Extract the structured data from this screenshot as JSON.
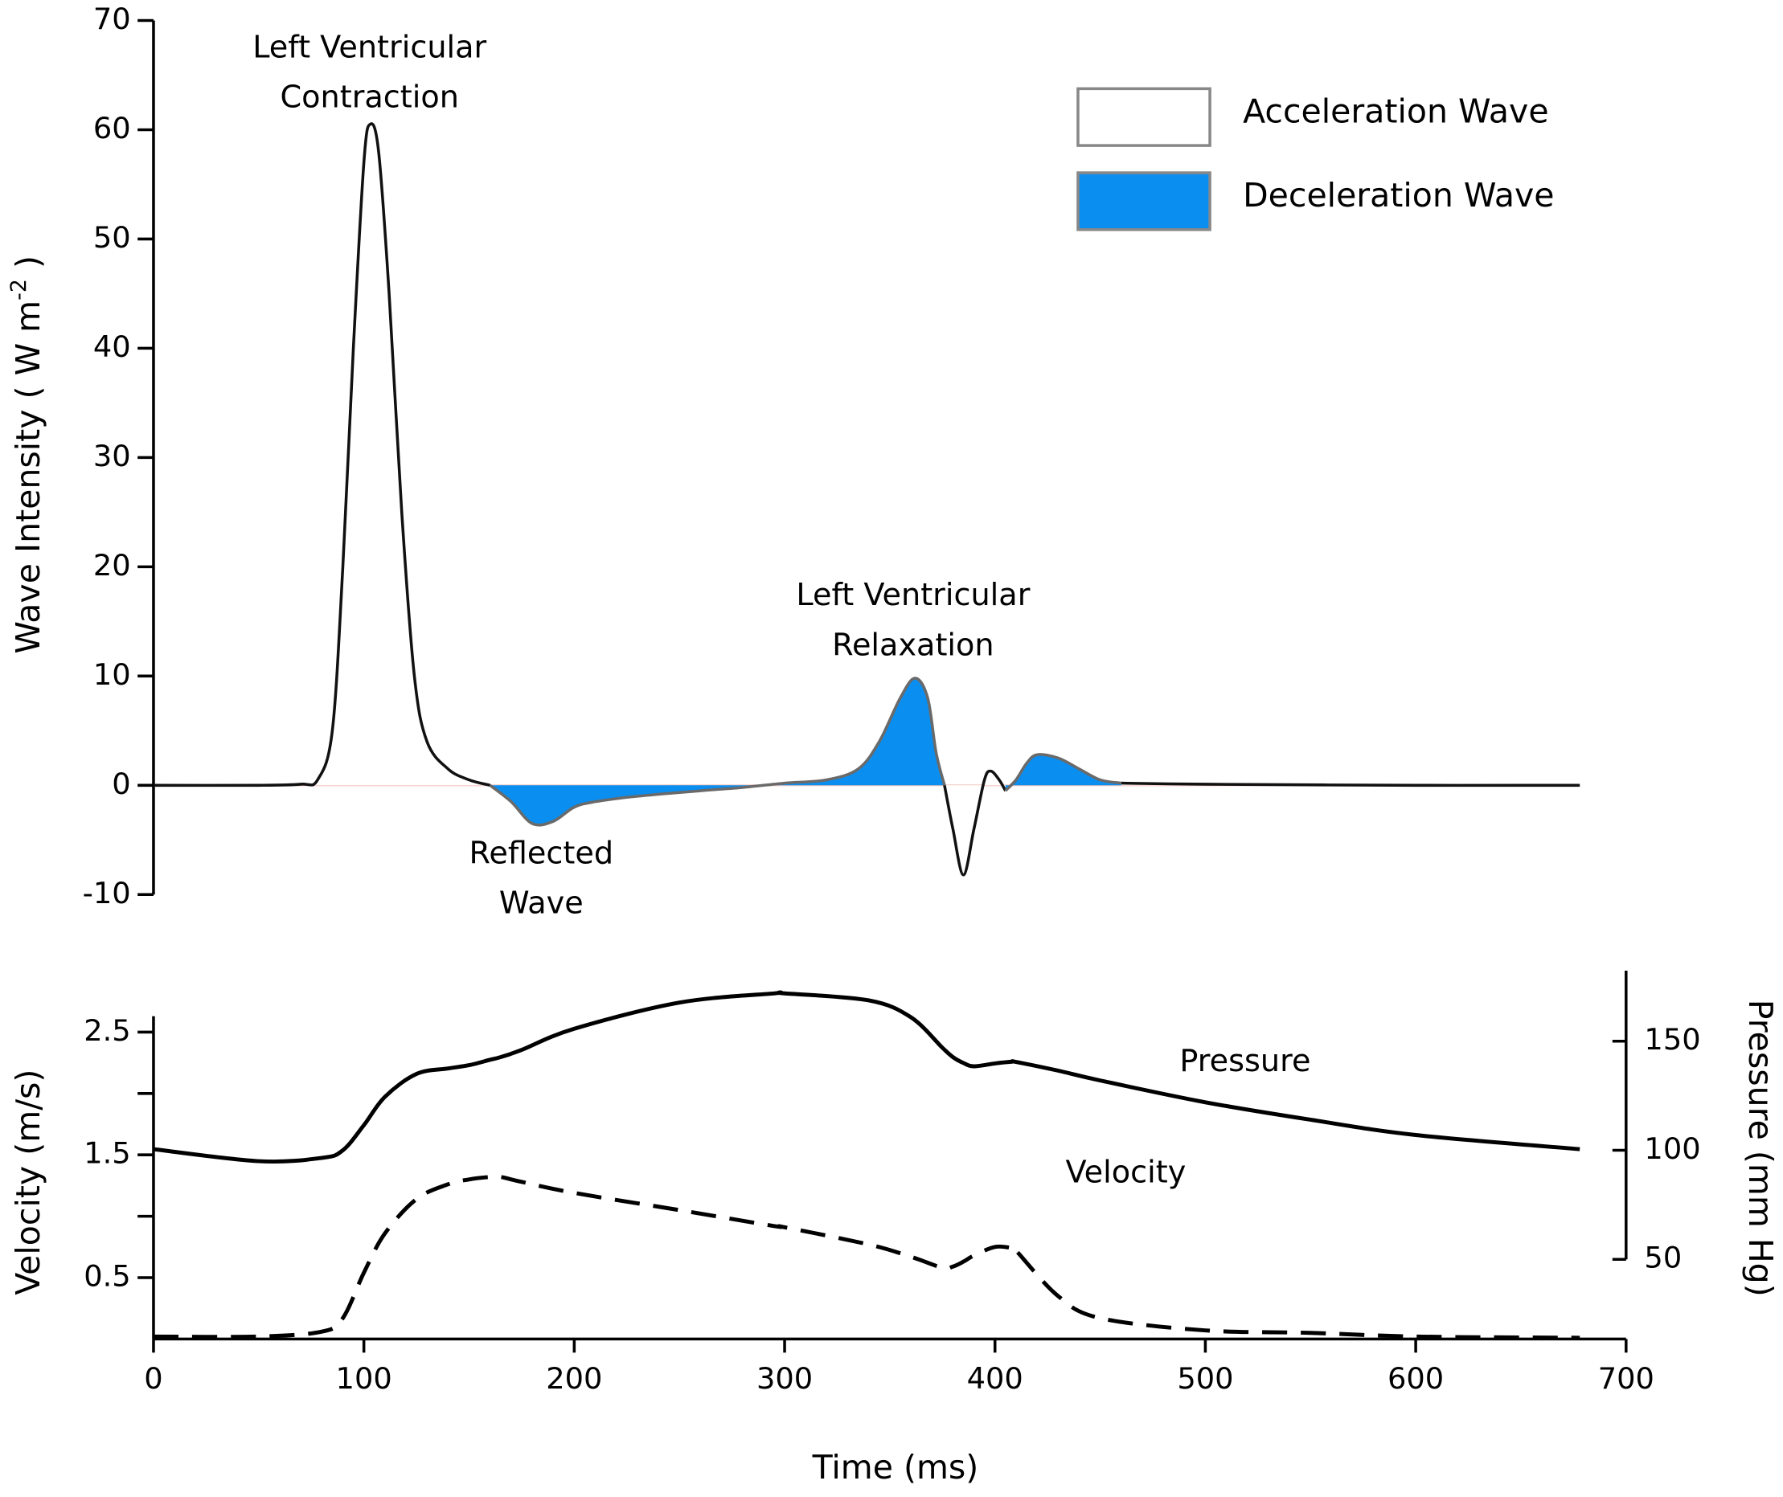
{
  "chart_data": [
    {
      "type": "area",
      "ylabel": {
        "text": "Wave Intensity ( W m",
        "sup": "-2",
        "end": " )"
      },
      "xlim": [
        0,
        700
      ],
      "ylim": [
        -10,
        70
      ],
      "yticks": [
        -10,
        0,
        10,
        20,
        30,
        40,
        50,
        60,
        70
      ],
      "legend": "top-right",
      "x": [
        0,
        50,
        70,
        78,
        85,
        90,
        95,
        100,
        103,
        107,
        112,
        118,
        124,
        130,
        140,
        150,
        160,
        170,
        180,
        190,
        200,
        210,
        230,
        260,
        280,
        300,
        320,
        335,
        345,
        355,
        362,
        368,
        372,
        376,
        380,
        385,
        390,
        395,
        398,
        402,
        405,
        410,
        415,
        420,
        430,
        440,
        450,
        460,
        500,
        600,
        678
      ],
      "series": [
        {
          "name": "Acceleration Wave",
          "color": "#ffffff",
          "line": "#111111",
          "values": [
            0,
            0,
            0.1,
            0.5,
            5,
            20,
            40,
            57,
            60.5,
            58,
            45,
            25,
            10,
            4,
            1.5,
            0.5,
            0,
            null,
            null,
            null,
            null,
            null,
            null,
            null,
            null,
            null,
            null,
            null,
            null,
            null,
            null,
            null,
            null,
            0,
            -4,
            -8.2,
            -4,
            0.5,
            1.3,
            0.5,
            -0.5,
            null,
            null,
            null,
            null,
            null,
            null,
            0.2,
            0.1,
            0,
            0
          ]
        },
        {
          "name": "Deceleration Wave",
          "color": "#0a8ef0",
          "line": "#6a6a6a",
          "values": [
            null,
            null,
            null,
            null,
            null,
            null,
            null,
            null,
            null,
            null,
            null,
            null,
            null,
            null,
            null,
            null,
            0,
            -1.5,
            -3.5,
            -3.3,
            -2,
            -1.5,
            -1,
            -0.5,
            -0.2,
            0.2,
            0.5,
            1.5,
            4,
            8,
            9.8,
            8,
            3,
            0,
            null,
            null,
            null,
            null,
            null,
            null,
            -0.5,
            0.5,
            2,
            2.8,
            2.5,
            1.5,
            0.5,
            0.2,
            null,
            null,
            null
          ]
        }
      ],
      "annotations": [
        {
          "text": [
            "Left Ventricular",
            "Contraction"
          ]
        },
        {
          "text": [
            "Reflected",
            "Wave"
          ]
        },
        {
          "text": [
            "Left Ventricular",
            "Relaxation"
          ]
        }
      ]
    },
    {
      "type": "line",
      "xlabel": "Time (ms)",
      "ylabel": "Velocity (m/s)",
      "y2label": "Pressure (mm Hg)",
      "xlim": [
        0,
        700
      ],
      "xticks": [
        0,
        100,
        200,
        300,
        400,
        500,
        600,
        700
      ],
      "ylim": [
        0,
        3
      ],
      "yticks": [
        0.5,
        1.5,
        2.5
      ],
      "yminorticks": [
        1,
        2
      ],
      "y2lim": [
        13.5,
        182.3
      ],
      "y2ticks": [
        50,
        100,
        150
      ],
      "x": [
        0,
        50,
        80,
        90,
        100,
        110,
        125,
        140,
        150,
        160,
        165,
        175,
        200,
        250,
        295,
        300,
        340,
        360,
        375,
        380,
        385,
        390,
        400,
        408,
        410,
        430,
        450,
        500,
        550,
        600,
        678
      ],
      "series": [
        {
          "name": "Pressure",
          "color": "#000000",
          "axis": "y2",
          "dash": false,
          "values": [
            100.5,
            95,
            96.5,
            100,
            111.5,
            124.5,
            135,
            137.5,
            139,
            141.5,
            142.7,
            146,
            155.7,
            167.7,
            171.9,
            171.9,
            168.7,
            161,
            147,
            142.7,
            140,
            138.5,
            139.8,
            140.6,
            140.5,
            136.5,
            132,
            122,
            114,
            107,
            100.5
          ]
        },
        {
          "name": "Velocity",
          "color": "#000000",
          "axis": "y",
          "dash": true,
          "values": [
            0.02,
            0.02,
            0.06,
            0.17,
            0.54,
            0.86,
            1.14,
            1.26,
            1.3,
            1.32,
            1.32,
            1.28,
            1.19,
            1.05,
            0.92,
            0.91,
            0.77,
            0.67,
            0.58,
            0.59,
            0.63,
            0.68,
            0.75,
            0.74,
            0.72,
            0.35,
            0.17,
            0.07,
            0.05,
            0.02,
            0.01
          ]
        }
      ]
    }
  ]
}
